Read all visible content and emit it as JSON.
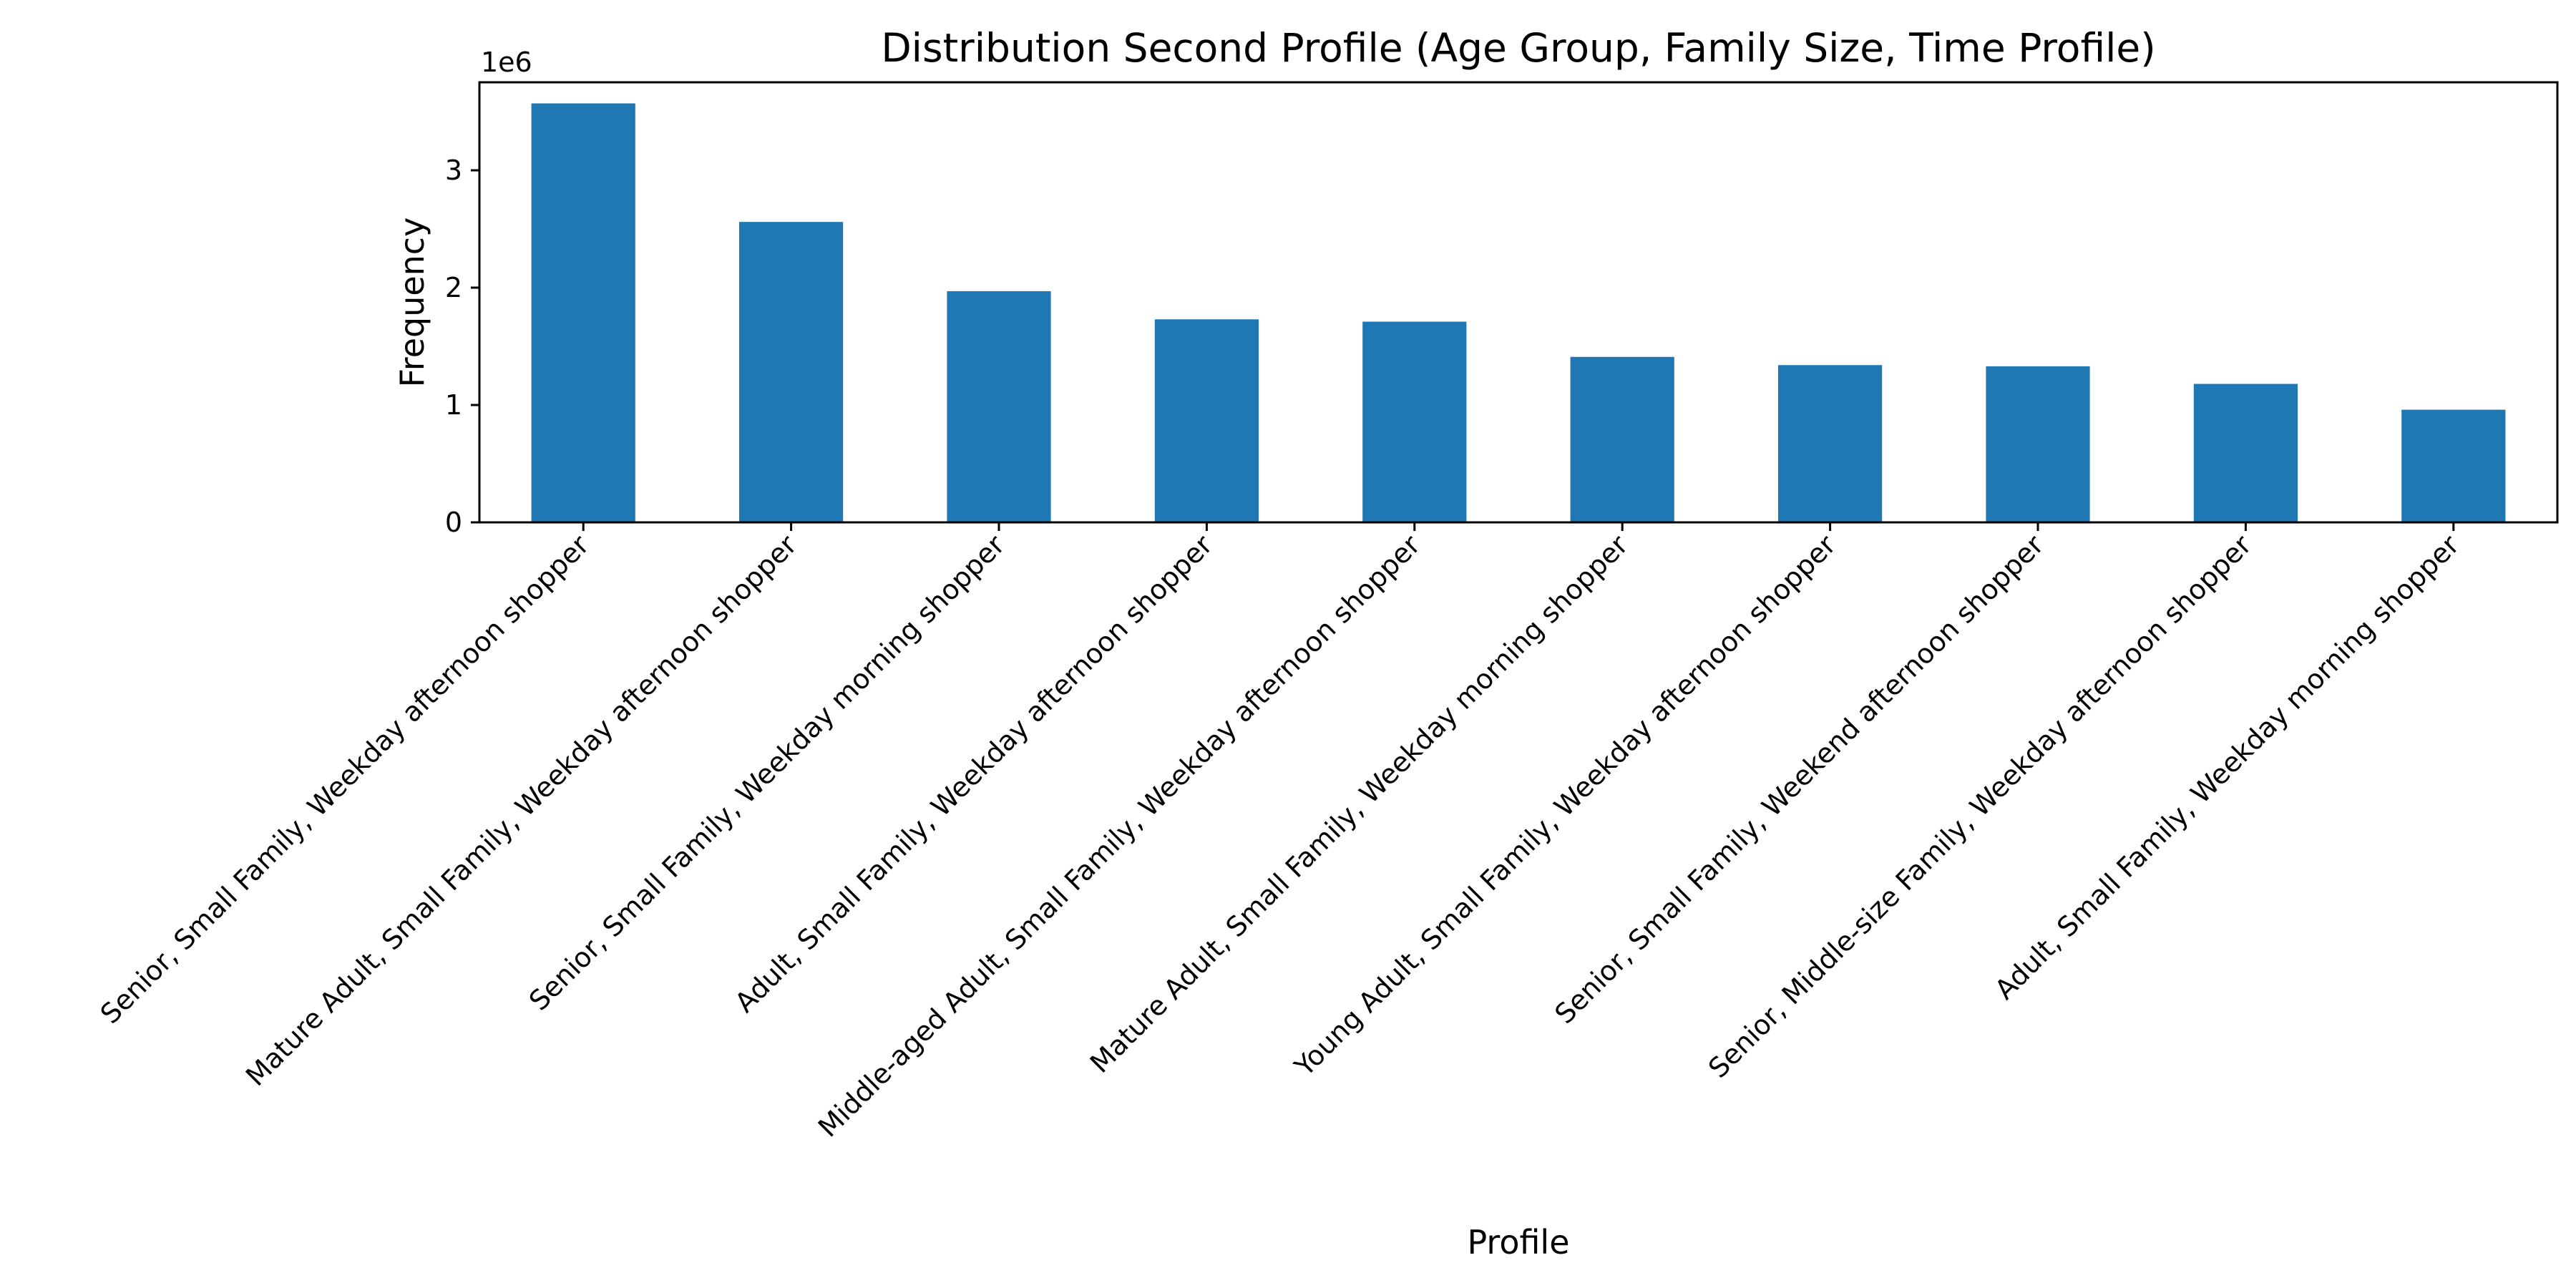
{
  "chart_data": {
    "type": "bar",
    "title": "Distribution Second Profile (Age Group, Family Size, Time Profile)",
    "xlabel": "Profile",
    "ylabel": "Frequency",
    "y_offset_label": "1e6",
    "y_scale": 1000000,
    "ylim": [
      0,
      3750000
    ],
    "yticks": [
      0,
      1000000,
      2000000,
      3000000
    ],
    "ytick_labels": [
      "0",
      "1",
      "2",
      "3"
    ],
    "grid": false,
    "legend": "none",
    "bar_color": "#1f77b4",
    "categories": [
      "Senior, Small Family, Weekday afternoon shopper",
      "Mature Adult, Small Family, Weekday afternoon shopper",
      "Senior, Small Family, Weekday morning shopper",
      "Adult, Small Family, Weekday afternoon shopper",
      "Middle-aged Adult, Small Family, Weekday afternoon shopper",
      "Mature Adult, Small Family, Weekday morning shopper",
      "Young Adult, Small Family, Weekday afternoon shopper",
      "Senior, Small Family, Weekend afternoon shopper",
      "Senior, Middle-size Family, Weekday afternoon shopper",
      "Adult, Small Family, Weekday morning shopper"
    ],
    "values": [
      3570000,
      2560000,
      1970000,
      1730000,
      1710000,
      1410000,
      1340000,
      1330000,
      1180000,
      960000
    ]
  }
}
